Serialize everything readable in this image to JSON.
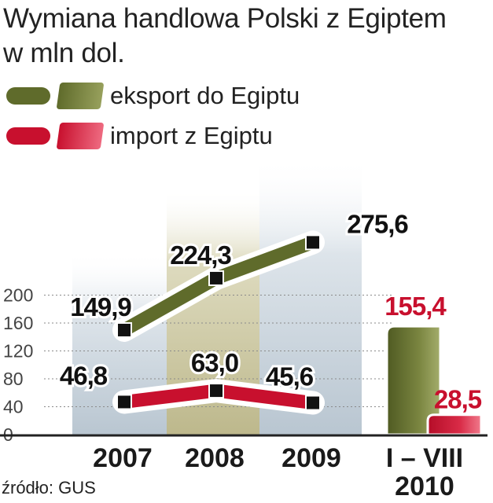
{
  "title": "Wymiana handlowa Polski z Egiptem",
  "subtitle": "w mln dol.",
  "source": "źródło: GUS",
  "colors": {
    "export": "#5f6b2b",
    "export_light": "#8e9a56",
    "import": "#c8102e",
    "import_light": "#e8506a",
    "band_blue": "#c9d3dc",
    "band_olive": "#c7c39b"
  },
  "legend": {
    "export": "eksport do Egiptu",
    "import": "import z Egiptu"
  },
  "chart_data": {
    "type": "line",
    "yticks": [
      "0",
      "40",
      "80",
      "120",
      "160",
      "200"
    ],
    "ylim": [
      0,
      290
    ],
    "categories": [
      "2007",
      "2008",
      "2009"
    ],
    "series": [
      {
        "name": "eksport do Egiptu",
        "values": [
          149.9,
          224.3,
          275.6
        ],
        "labels": [
          "149,9",
          "224,3",
          "275,6"
        ]
      },
      {
        "name": "import z Egiptu",
        "values": [
          46.8,
          63.0,
          45.6
        ],
        "labels": [
          "46,8",
          "63,0",
          "45,6"
        ]
      }
    ],
    "bar_group": {
      "category_line1": "I – VIII",
      "category_line2": "2010",
      "export": {
        "value": 155.4,
        "label": "155,4"
      },
      "import": {
        "value": 28.5,
        "label": "28,5"
      }
    },
    "grid": true
  }
}
